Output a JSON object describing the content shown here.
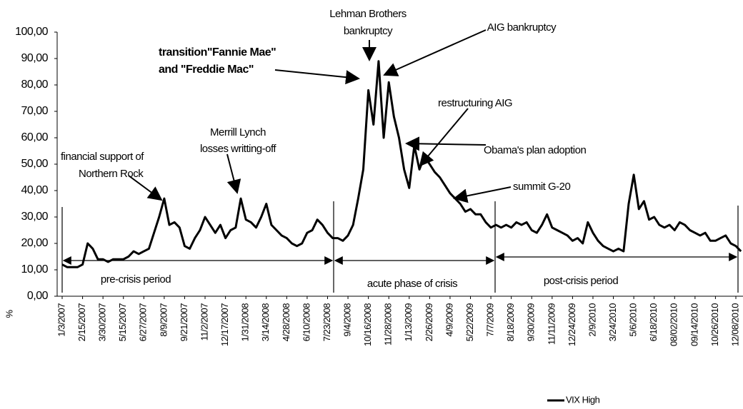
{
  "chart_data": {
    "type": "line",
    "categories": [
      "1/3/2007",
      null,
      null,
      null,
      "2/15/2007",
      null,
      null,
      null,
      "3/30/2007",
      null,
      null,
      null,
      "5/15/2007",
      null,
      null,
      null,
      "6/27/2007",
      null,
      null,
      null,
      "8/9/2007",
      null,
      null,
      null,
      "9/21/2007",
      null,
      null,
      null,
      "11/2/2007",
      null,
      null,
      null,
      "12/17/2007",
      null,
      null,
      null,
      "1/31/2008",
      null,
      null,
      null,
      "3/14/2008",
      null,
      null,
      null,
      "4/28/2008",
      null,
      null,
      null,
      "6/10/2008",
      null,
      null,
      null,
      "7/23/2008",
      null,
      null,
      null,
      "9/4/2008",
      null,
      null,
      null,
      "10/16/2008",
      null,
      null,
      null,
      "11/28/2008",
      null,
      null,
      null,
      "1/13/2009",
      null,
      null,
      null,
      "2/26/2009",
      null,
      null,
      null,
      "4/9/2009",
      null,
      null,
      null,
      "5/22/2009",
      null,
      null,
      null,
      "7/7/2009",
      null,
      null,
      null,
      "8/18/2009",
      null,
      null,
      null,
      "9/30/2009",
      null,
      null,
      null,
      "11/11/2009",
      null,
      null,
      null,
      "12/24/2009",
      null,
      null,
      null,
      "2/9/2010",
      null,
      null,
      null,
      "3/24/2010",
      null,
      null,
      null,
      "5/6/2010",
      null,
      null,
      null,
      "6/18/2010",
      null,
      null,
      null,
      "08/02/2010",
      null,
      null,
      null,
      "09/14/2010",
      null,
      null,
      null,
      "10/26/2010",
      null,
      null,
      null,
      "12/08/2010",
      null
    ],
    "series": [
      {
        "name": "VIX High",
        "color": "#000000",
        "values": [
          12,
          11,
          11,
          11,
          12,
          20,
          18,
          14,
          14,
          13,
          14,
          14,
          14,
          15,
          17,
          16,
          17,
          18,
          24,
          30,
          37,
          27,
          28,
          26,
          19,
          18,
          22,
          25,
          30,
          27,
          24,
          27,
          22,
          25,
          26,
          37,
          29,
          28,
          26,
          30,
          35,
          27,
          25,
          23,
          22,
          20,
          19,
          20,
          24,
          25,
          29,
          27,
          24,
          22,
          22,
          21,
          23,
          27,
          37,
          48,
          78,
          65,
          89,
          60,
          81,
          68,
          60,
          48,
          41,
          57,
          48,
          53,
          50,
          47,
          45,
          42,
          39,
          37,
          35,
          32,
          33,
          31,
          31,
          28,
          26,
          27,
          26,
          27,
          26,
          28,
          27,
          28,
          25,
          24,
          27,
          31,
          26,
          25,
          24,
          23,
          21,
          22,
          20,
          28,
          24,
          21,
          19,
          18,
          17,
          18,
          17,
          35,
          46,
          33,
          36,
          29,
          30,
          27,
          26,
          27,
          25,
          28,
          27,
          25,
          24,
          23,
          24,
          21,
          21,
          22,
          23,
          20,
          19,
          17
        ]
      }
    ],
    "ylim": [
      0,
      100
    ],
    "yticks": [
      {
        "value": 0,
        "label": "0,00"
      },
      {
        "value": 10,
        "label": "10,00"
      },
      {
        "value": 20,
        "label": "20,00"
      },
      {
        "value": 30,
        "label": "30,00"
      },
      {
        "value": 40,
        "label": "40,00"
      },
      {
        "value": 50,
        "label": "50,00"
      },
      {
        "value": 60,
        "label": "60,00"
      },
      {
        "value": 70,
        "label": "70,00"
      },
      {
        "value": 80,
        "label": "80,00"
      },
      {
        "value": 90,
        "label": "90,00"
      },
      {
        "value": 100,
        "label": "100,00"
      }
    ],
    "y_label": "%",
    "annotations": [
      {
        "lines": [
          "Lehman Brothers",
          "bankruptcy"
        ]
      },
      {
        "lines": [
          "AIG bankruptcy"
        ]
      },
      {
        "lines": [
          "transition\"Fannie Mae\"",
          "and \"Freddie Mac\""
        ]
      },
      {
        "lines": [
          "restructuring  AIG"
        ]
      },
      {
        "lines": [
          "Obama's plan adoption"
        ]
      },
      {
        "lines": [
          "summit G-20"
        ]
      },
      {
        "lines": [
          "Merrill Lynch",
          "losses writting-off"
        ]
      },
      {
        "lines": [
          "financial support of",
          "Northern Rock"
        ]
      }
    ],
    "periods": [
      "pre-crisis period",
      "acute phase of crisis",
      "post-crisis period"
    ],
    "legend": "bottom"
  }
}
